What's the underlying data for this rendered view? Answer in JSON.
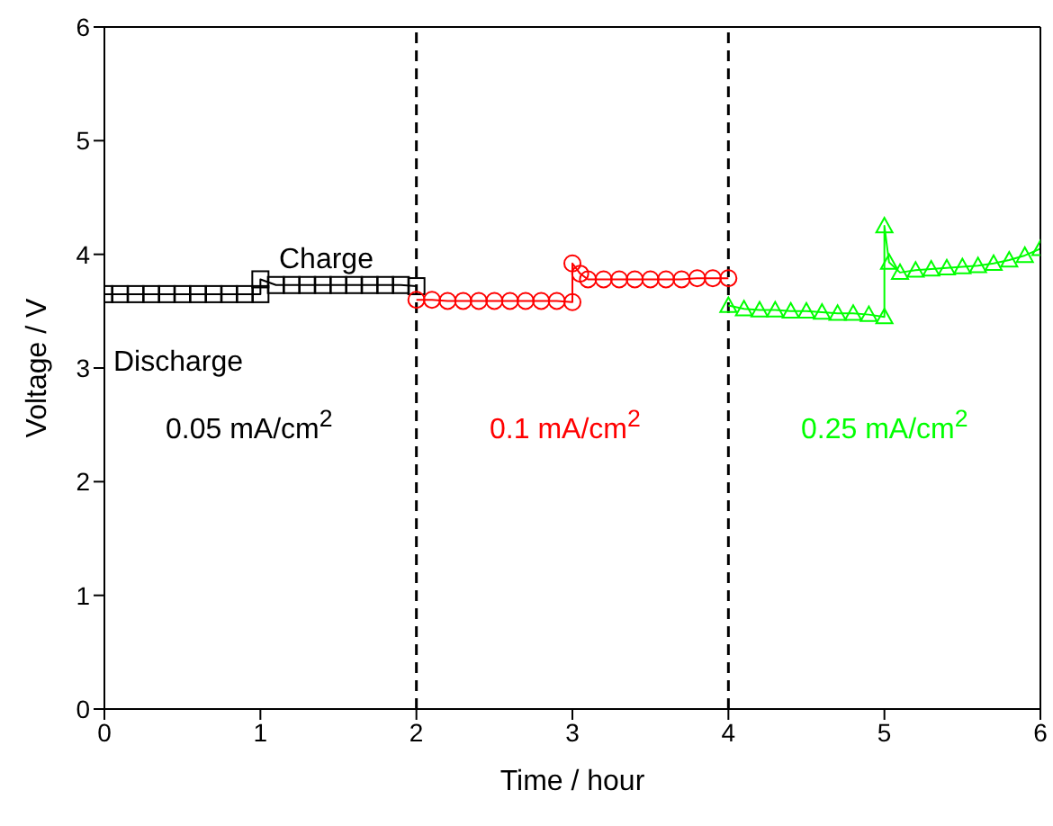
{
  "chart_data": {
    "type": "line",
    "xlabel": "Time / hour",
    "ylabel": "Voltage / V",
    "xlim": [
      0,
      6
    ],
    "ylim": [
      0,
      6
    ],
    "xticks": [
      0,
      1,
      2,
      3,
      4,
      5,
      6
    ],
    "yticks": [
      0,
      1,
      2,
      3,
      4,
      5,
      6
    ],
    "line_style": "solid",
    "series": [
      {
        "color": "#000000",
        "marker": "square",
        "x": [
          0,
          0.1,
          0.2,
          0.3,
          0.4,
          0.5,
          0.6,
          0.7,
          0.8,
          0.9,
          1.0,
          1.0,
          1.1,
          1.2,
          1.3,
          1.4,
          1.5,
          1.6,
          1.7,
          1.8,
          1.9,
          2.0
        ],
        "values": [
          3.65,
          3.65,
          3.65,
          3.65,
          3.65,
          3.65,
          3.65,
          3.65,
          3.65,
          3.65,
          3.65,
          3.78,
          3.73,
          3.73,
          3.73,
          3.73,
          3.73,
          3.73,
          3.73,
          3.73,
          3.73,
          3.72
        ]
      },
      {
        "color": "#ff0000",
        "marker": "circle",
        "x": [
          2.0,
          2.1,
          2.2,
          2.3,
          2.4,
          2.5,
          2.6,
          2.7,
          2.8,
          2.9,
          3.0,
          3.0,
          3.05,
          3.1,
          3.2,
          3.3,
          3.4,
          3.5,
          3.6,
          3.7,
          3.8,
          3.9,
          4.0
        ],
        "values": [
          3.6,
          3.6,
          3.59,
          3.59,
          3.59,
          3.59,
          3.59,
          3.59,
          3.59,
          3.59,
          3.58,
          3.92,
          3.83,
          3.78,
          3.78,
          3.78,
          3.78,
          3.78,
          3.78,
          3.78,
          3.79,
          3.79,
          3.79
        ]
      },
      {
        "color": "#00ff00",
        "marker": "triangle",
        "x": [
          4.0,
          4.1,
          4.2,
          4.3,
          4.4,
          4.5,
          4.6,
          4.7,
          4.8,
          4.9,
          5.0,
          5.0,
          5.03,
          5.1,
          5.2,
          5.3,
          5.4,
          5.5,
          5.6,
          5.7,
          5.8,
          5.9,
          6.0
        ],
        "values": [
          3.55,
          3.52,
          3.51,
          3.51,
          3.5,
          3.5,
          3.49,
          3.48,
          3.48,
          3.47,
          3.45,
          4.25,
          3.93,
          3.84,
          3.86,
          3.87,
          3.88,
          3.89,
          3.9,
          3.92,
          3.95,
          3.99,
          4.05
        ]
      }
    ],
    "ref_lines": [
      {
        "axis": "x",
        "value": 2,
        "color": "#000000",
        "line_style": "dashed"
      },
      {
        "axis": "x",
        "value": 4,
        "color": "#000000",
        "line_style": "dashed"
      }
    ],
    "annotations": [
      "Charge",
      "Discharge",
      "0.05 mA/cm$^{2}$",
      "0.1 mA/cm$^{2}$",
      "0.25 mA/cm$^{2}$"
    ]
  }
}
